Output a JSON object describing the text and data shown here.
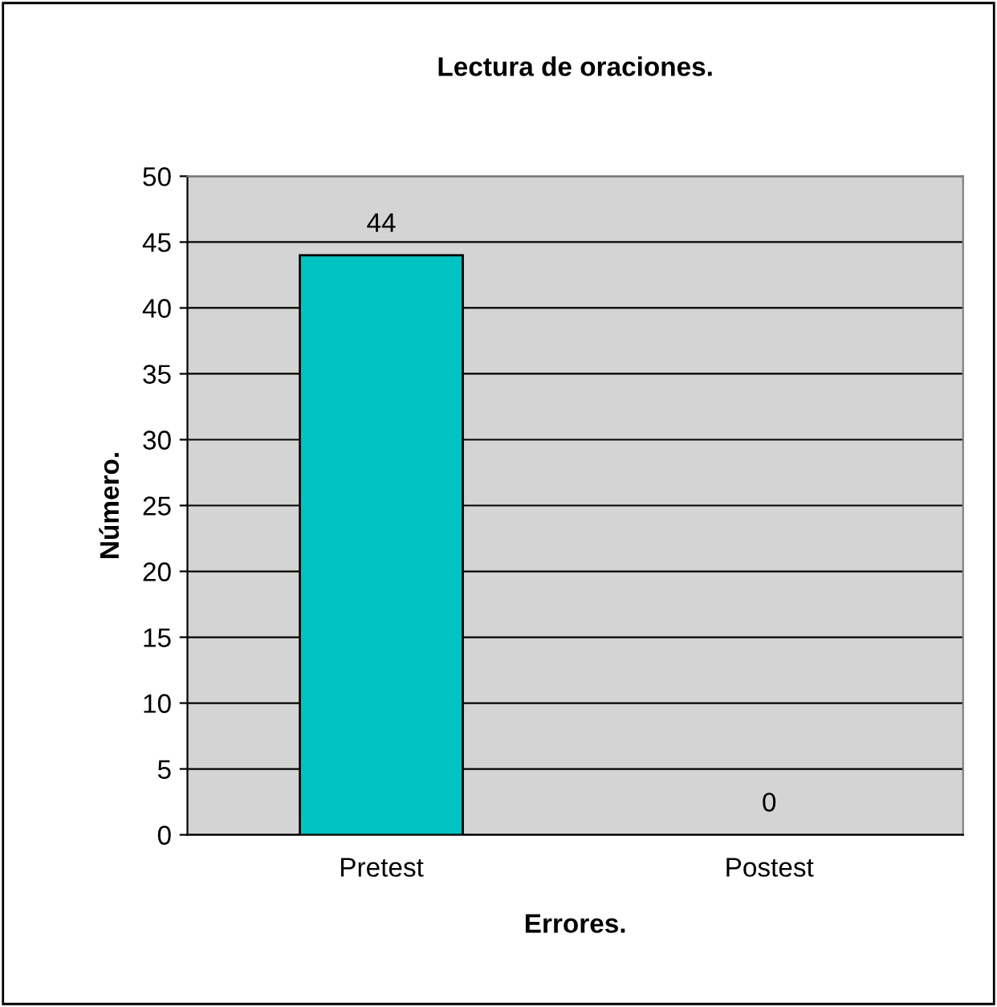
{
  "chart_data": {
    "type": "bar",
    "title": "Lectura de oraciones.",
    "xlabel": "Errores.",
    "ylabel": "Número.",
    "categories": [
      "Pretest",
      "Postest"
    ],
    "values": [
      44,
      0
    ],
    "color": "#00c4c4",
    "ylim": [
      0,
      50
    ],
    "yticks": [
      0,
      5,
      10,
      15,
      20,
      25,
      30,
      35,
      40,
      45,
      50
    ],
    "grid": "y",
    "data_labels": true,
    "legend": false
  }
}
